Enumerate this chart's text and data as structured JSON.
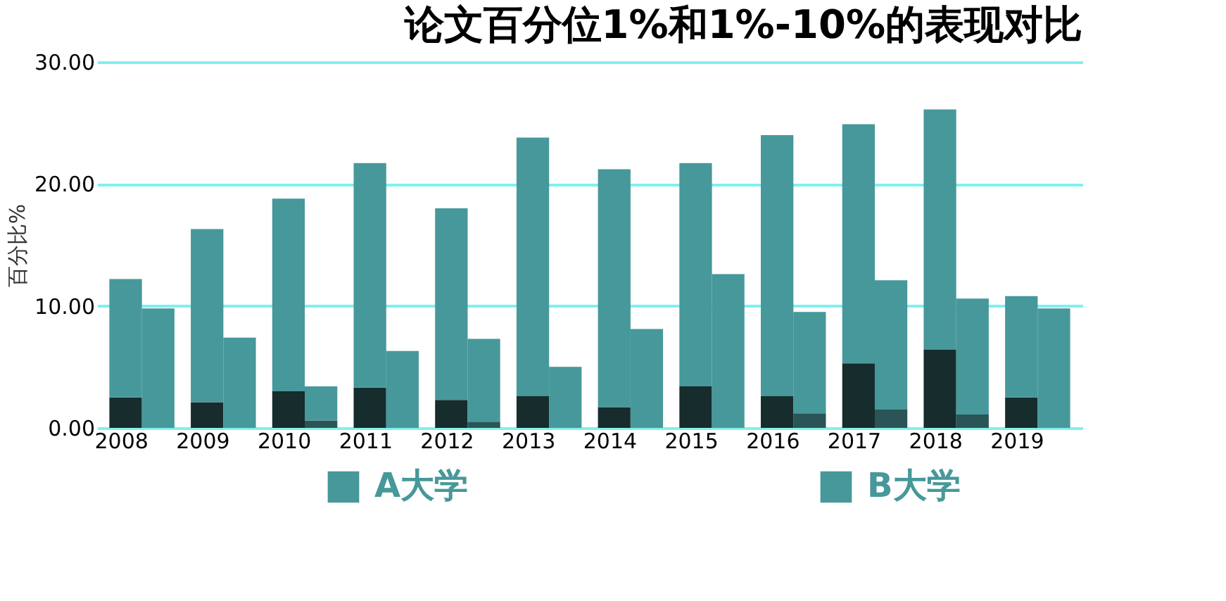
{
  "chart_data": {
    "type": "bar",
    "title": "论文百分位1%和1%-10%的表现对比",
    "ylabel": "百分比%",
    "stacked": true,
    "categories": [
      "2008",
      null,
      "2009",
      null,
      "2010",
      null,
      "2011",
      null,
      "2012",
      null,
      "2013",
      null,
      "2014",
      null,
      "2015",
      null,
      "2016",
      null,
      "2017",
      null,
      "2018",
      null,
      "2019",
      null
    ],
    "series": [
      {
        "color": "#172c2d",
        "values": [
          2.5,
          null,
          2.1,
          null,
          3.0,
          null,
          3.3,
          null,
          2.3,
          null,
          2.6,
          null,
          1.7,
          null,
          3.4,
          null,
          2.6,
          null,
          5.3,
          null,
          6.4,
          null,
          2.5,
          null
        ]
      },
      {
        "color": "#2a5455",
        "values": [
          null,
          0,
          null,
          0,
          null,
          0.6,
          null,
          0,
          null,
          0.5,
          null,
          0,
          null,
          0,
          null,
          0,
          null,
          1.2,
          null,
          1.5,
          null,
          1.1,
          null,
          0
        ]
      },
      {
        "name": "A大学",
        "color": "#47989a",
        "values": [
          9.7,
          null,
          14.2,
          null,
          15.8,
          null,
          18.4,
          null,
          15.7,
          null,
          21.2,
          null,
          19.5,
          null,
          18.3,
          null,
          21.4,
          null,
          19.6,
          null,
          19.7,
          null,
          8.3,
          null
        ]
      },
      {
        "name": "B大学",
        "color": "#47989a",
        "values": [
          null,
          9.8,
          null,
          7.4,
          null,
          2.8,
          null,
          6.3,
          null,
          6.8,
          null,
          5.0,
          null,
          8.1,
          null,
          12.6,
          null,
          8.3,
          null,
          10.6,
          null,
          9.5,
          null,
          9.8
        ]
      }
    ],
    "ylim": [
      0,
      30
    ],
    "yticks": [
      {
        "value": 0,
        "label": "0.00"
      },
      {
        "value": 10,
        "label": "10.00"
      },
      {
        "value": 20,
        "label": "20.00"
      },
      {
        "value": 30,
        "label": "30.00"
      }
    ],
    "grid": "y",
    "legend": "bottom"
  }
}
